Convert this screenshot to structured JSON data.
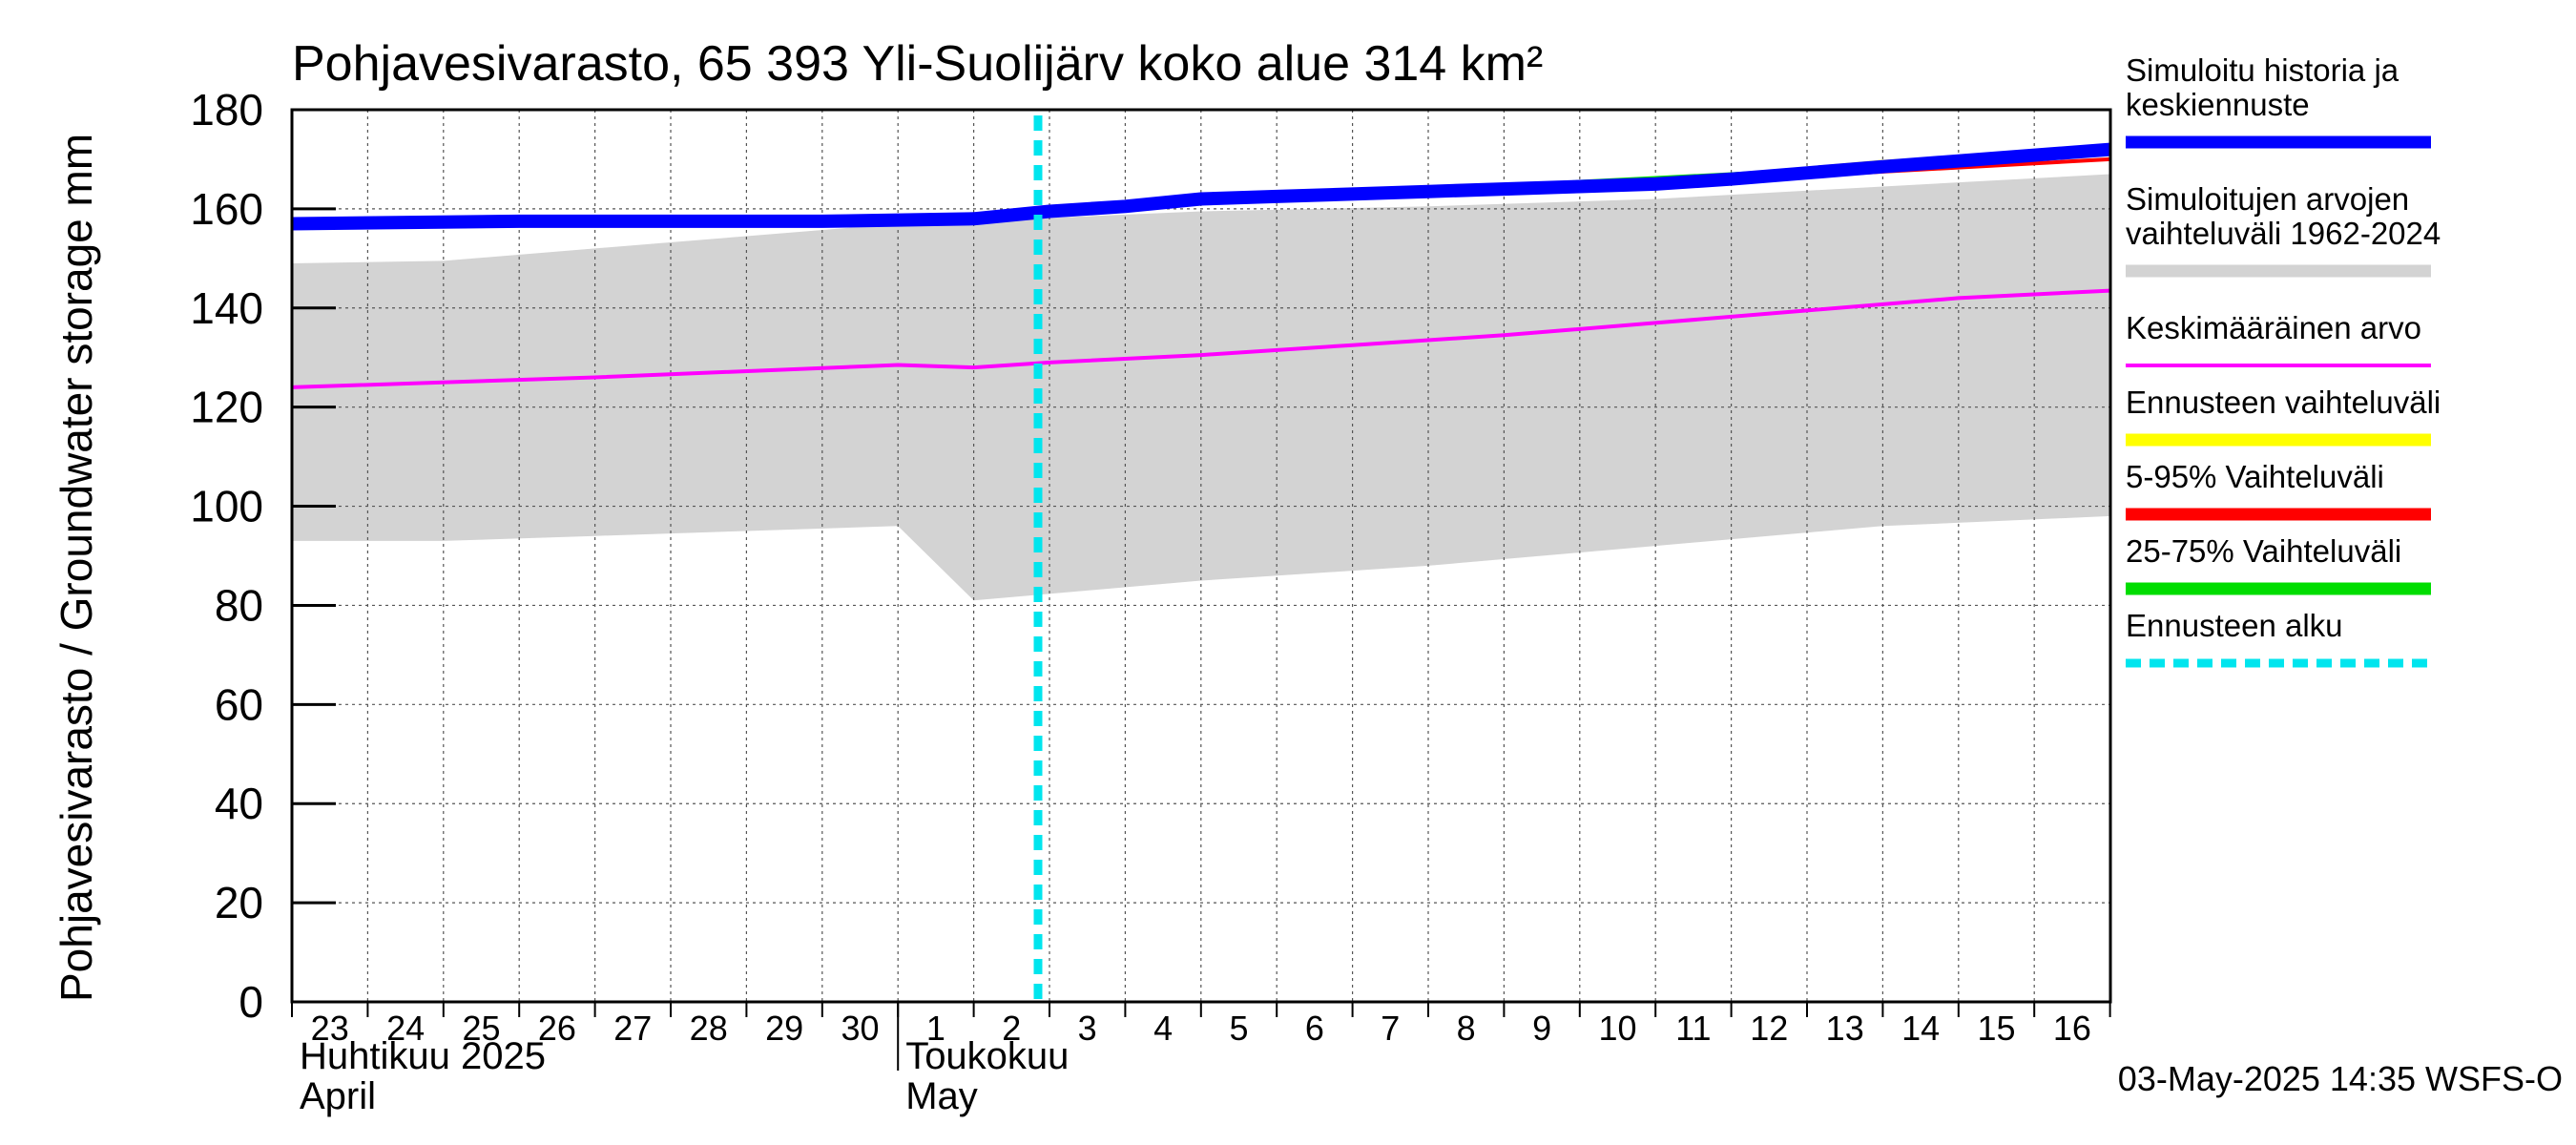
{
  "chart_data": {
    "type": "area",
    "title": "Pohjavesivarasto, 65 393 Yli-Suolijärv koko alue 314 km²",
    "ylabel": "Pohjavesivarasto / Groundwater storage   mm",
    "ylim": [
      0,
      180
    ],
    "yticks": [
      0,
      20,
      40,
      60,
      80,
      100,
      120,
      140,
      160,
      180
    ],
    "grid": true,
    "legend_position": "right",
    "x_range_days": [
      "2025-04-23",
      "2025-05-17"
    ],
    "x_tick_labels": [
      "23",
      "24",
      "25",
      "26",
      "27",
      "28",
      "29",
      "30",
      "1",
      "2",
      "3",
      "4",
      "5",
      "6",
      "7",
      "8",
      "9",
      "10",
      "11",
      "12",
      "13",
      "14",
      "15",
      "16"
    ],
    "month_labels": [
      {
        "fi": "Huhtikuu  2025",
        "en": "April",
        "start": "2025-04-23"
      },
      {
        "fi": "Toukokuu",
        "en": "May",
        "start": "2025-05-01"
      }
    ],
    "forecast_start": "2025-05-03",
    "timestamp": "03-May-2025 14:35 WSFS-O",
    "series": [
      {
        "name": "Simuloitujen arvojen vaihteluväli 1962-2024",
        "kind": "band",
        "color": "#d3d3d3",
        "points": [
          [
            "2025-04-23",
            93,
            149
          ],
          [
            "2025-04-25",
            93,
            149.5
          ],
          [
            "2025-04-27",
            94,
            152
          ],
          [
            "2025-04-29",
            95,
            154.5
          ],
          [
            "2025-05-01",
            96,
            157
          ],
          [
            "2025-05-02",
            81,
            157.5
          ],
          [
            "2025-05-05",
            85,
            159.5
          ],
          [
            "2025-05-08",
            88,
            160.5
          ],
          [
            "2025-05-11",
            92,
            162
          ],
          [
            "2025-05-14",
            96,
            164.5
          ],
          [
            "2025-05-17",
            98,
            167
          ]
        ]
      },
      {
        "name": "Keskimääräinen arvo",
        "kind": "line",
        "color": "#ff00ff",
        "points": [
          [
            "2025-04-23",
            124
          ],
          [
            "2025-04-27",
            126
          ],
          [
            "2025-05-01",
            128.5
          ],
          [
            "2025-05-02",
            128
          ],
          [
            "2025-05-03",
            129
          ],
          [
            "2025-05-05",
            130.5
          ],
          [
            "2025-05-07",
            132.5
          ],
          [
            "2025-05-09",
            134.5
          ],
          [
            "2025-05-11",
            137
          ],
          [
            "2025-05-13",
            139.5
          ],
          [
            "2025-05-15",
            142
          ],
          [
            "2025-05-17",
            143.5
          ]
        ]
      },
      {
        "name": "Ennusteen vaihteluväli",
        "kind": "line",
        "color": "#ffff00",
        "points": [
          [
            "2025-05-03",
            160
          ],
          [
            "2025-05-05",
            162
          ],
          [
            "2025-05-08",
            164
          ],
          [
            "2025-05-11",
            165.5
          ],
          [
            "2025-05-14",
            169.5
          ],
          [
            "2025-05-17",
            172
          ]
        ]
      },
      {
        "name": "5-95% Vaihteluväli",
        "kind": "line",
        "color": "#ff0000",
        "points": [
          [
            "2025-05-03",
            160
          ],
          [
            "2025-05-05",
            161.8
          ],
          [
            "2025-05-08",
            163.8
          ],
          [
            "2025-05-11",
            164.8
          ],
          [
            "2025-05-14",
            167.5
          ],
          [
            "2025-05-17",
            170
          ]
        ]
      },
      {
        "name": "25-75% Vaihteluväli",
        "kind": "line",
        "color": "#00dd00",
        "points": [
          [
            "2025-05-03",
            160
          ],
          [
            "2025-05-08",
            164
          ],
          [
            "2025-05-17",
            171
          ]
        ]
      },
      {
        "name": "Simuloitu historia ja keskiennuste",
        "kind": "line",
        "color": "#0000ff",
        "points": [
          [
            "2025-04-23",
            157
          ],
          [
            "2025-04-26",
            157.5
          ],
          [
            "2025-04-30",
            157.5
          ],
          [
            "2025-05-02",
            158
          ],
          [
            "2025-05-03",
            159.5
          ],
          [
            "2025-05-04",
            160.5
          ],
          [
            "2025-05-05",
            162
          ],
          [
            "2025-05-06",
            162.5
          ],
          [
            "2025-05-08",
            163.5
          ],
          [
            "2025-05-10",
            164.5
          ],
          [
            "2025-05-11",
            165
          ],
          [
            "2025-05-12",
            166
          ],
          [
            "2025-05-14",
            168.5
          ],
          [
            "2025-05-17",
            172
          ]
        ]
      }
    ],
    "legend": [
      {
        "label": "Simuloitu historia ja\nkeskiennuste",
        "color": "#0000ff",
        "style": "thick"
      },
      {
        "label": "Simuloitujen arvojen\nvaihteluväli 1962-2024",
        "color": "#d3d3d3",
        "style": "thick"
      },
      {
        "label": "Keskimääräinen arvo",
        "color": "#ff00ff",
        "style": "thin"
      },
      {
        "label": "Ennusteen vaihteluväli",
        "color": "#ffff00",
        "style": "thick"
      },
      {
        "label": "5-95% Vaihteluväli",
        "color": "#ff0000",
        "style": "thick"
      },
      {
        "label": "25-75% Vaihteluväli",
        "color": "#00dd00",
        "style": "thick"
      },
      {
        "label": "Ennusteen alku",
        "color": "#00e5ee",
        "style": "dashed"
      }
    ]
  }
}
